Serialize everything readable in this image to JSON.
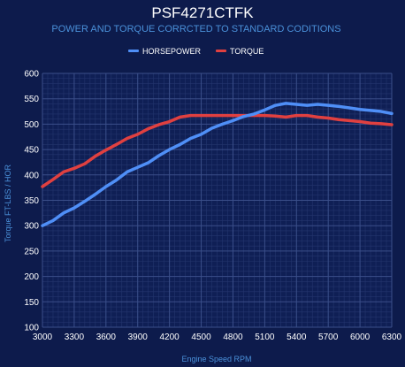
{
  "colors": {
    "background": "#0d1b4c",
    "plot_background": "#0f1f55",
    "grid_major": "#3b4f8a",
    "grid_minor": "#24366e",
    "accent_text": "#4a90d9",
    "horsepower": "#4f8ff7",
    "torque": "#e04040"
  },
  "chart_data": {
    "type": "line",
    "title": "PSF4271CTFK",
    "subtitle": "POWER AND TORQUE CORRCTED TO STANDARD CODITIONS",
    "xlabel": "Engine Speed RPM",
    "ylabel": "Torque FT-LBS / HOR",
    "xlim": [
      3000,
      6300
    ],
    "ylim": [
      100,
      600
    ],
    "grid": true,
    "legend_position": "top-center",
    "x_ticks": [
      3000,
      3300,
      3600,
      3900,
      4200,
      4500,
      4800,
      5100,
      5400,
      5700,
      6000,
      6300
    ],
    "y_ticks": [
      100,
      150,
      200,
      250,
      300,
      350,
      400,
      450,
      500,
      550,
      600
    ],
    "x": [
      3000,
      3100,
      3200,
      3300,
      3400,
      3500,
      3600,
      3700,
      3800,
      3900,
      4000,
      4100,
      4200,
      4300,
      4400,
      4500,
      4600,
      4700,
      4800,
      4900,
      5000,
      5100,
      5200,
      5300,
      5400,
      5500,
      5600,
      5700,
      5800,
      5900,
      6000,
      6100,
      6200,
      6300
    ],
    "series": [
      {
        "name": "HORSEPOWER",
        "color": "#4f8ff7",
        "values": [
          300,
          310,
          325,
          335,
          348,
          362,
          377,
          390,
          406,
          415,
          424,
          438,
          450,
          460,
          472,
          480,
          492,
          500,
          507,
          515,
          520,
          528,
          537,
          541,
          539,
          537,
          539,
          537,
          535,
          532,
          529,
          527,
          525,
          521
        ]
      },
      {
        "name": "TORQUE",
        "color": "#e04040",
        "values": [
          377,
          391,
          406,
          413,
          422,
          437,
          449,
          460,
          472,
          480,
          491,
          499,
          505,
          514,
          517,
          517,
          517,
          517,
          517,
          517,
          517,
          517,
          516,
          514,
          517,
          517,
          514,
          512,
          509,
          507,
          505,
          502,
          501,
          499
        ]
      }
    ]
  }
}
